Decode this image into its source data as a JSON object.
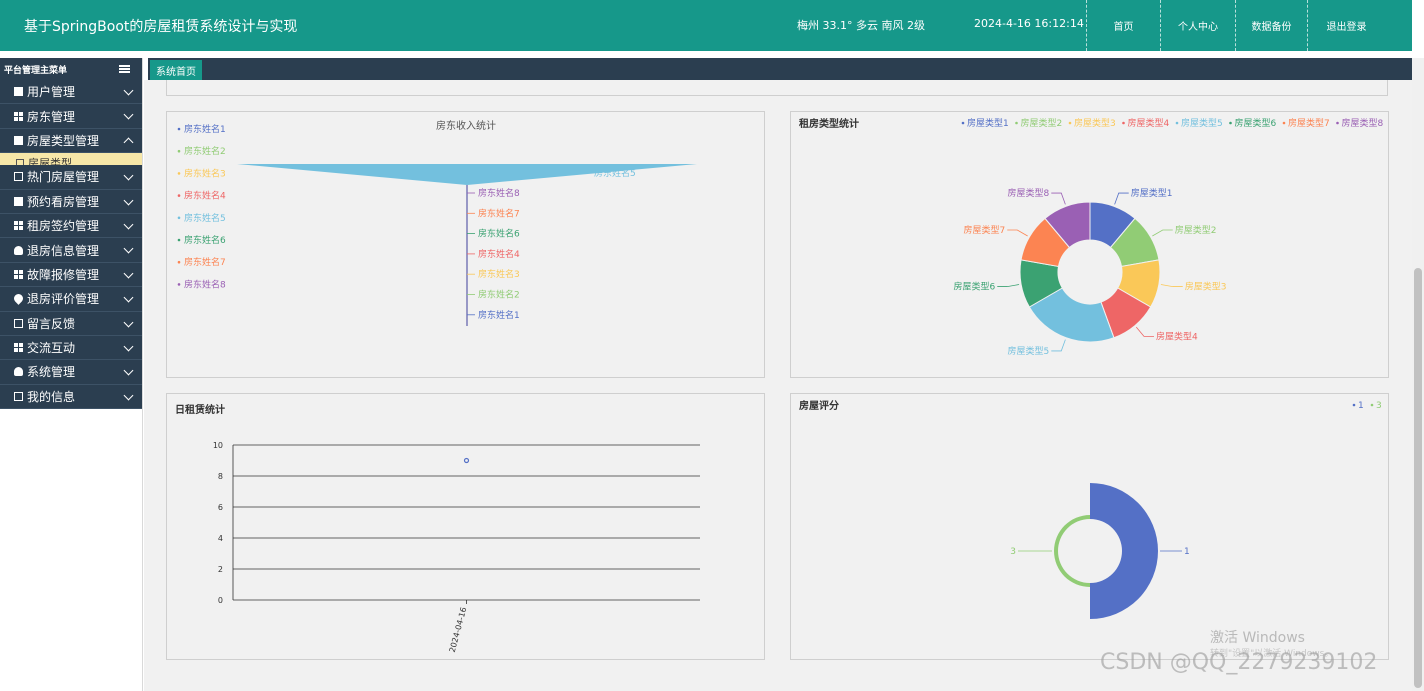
{
  "header": {
    "title": "基于SpringBoot的房屋租赁系统设计与实现",
    "weather": "梅州  33.1°  多云  南风  2级",
    "datetime": "2024-4-16 16:12:14",
    "nav": [
      "首页",
      "个人中心",
      "数据备份",
      "退出登录"
    ]
  },
  "sidebar": {
    "header": "平台管理主菜单",
    "items": [
      {
        "label": "用户管理",
        "icon": "chat-icon"
      },
      {
        "label": "房东管理",
        "icon": "grid-icon"
      },
      {
        "label": "房屋类型管理",
        "icon": "chat-icon",
        "expanded": true
      },
      {
        "label": "热门房屋管理",
        "icon": "chart-icon"
      },
      {
        "label": "预约看房管理",
        "icon": "clipboard-icon"
      },
      {
        "label": "租房签约管理",
        "icon": "grid-icon"
      },
      {
        "label": "退房信息管理",
        "icon": "user-icon"
      },
      {
        "label": "故障报修管理",
        "icon": "grid-icon"
      },
      {
        "label": "退房评价管理",
        "icon": "pin-icon"
      },
      {
        "label": "留言反馈",
        "icon": "form-icon"
      },
      {
        "label": "交流互动",
        "icon": "grid-icon"
      },
      {
        "label": "系统管理",
        "icon": "user-icon"
      },
      {
        "label": "我的信息",
        "icon": "card-icon"
      }
    ],
    "subitem": "房屋类型"
  },
  "tabs": [
    "系统首页"
  ],
  "watermark": {
    "line1": "激活 Windows",
    "line2": "转到\"设置\"以激活 Windows。",
    "csdn": "CSDN @QQ_2279239102"
  },
  "colors": {
    "header": "#16988a",
    "sidebar": "#2b3e50",
    "palette": [
      "#5470c6",
      "#91cc75",
      "#fac858",
      "#ee6666",
      "#73c0de",
      "#3ba272",
      "#fc8452",
      "#9a60b4"
    ]
  },
  "chart_data": [
    {
      "type": "funnel",
      "title": "房东收入统计",
      "legend": [
        "房东姓名1",
        "房东姓名2",
        "房东姓名3",
        "房东姓名4",
        "房东姓名5",
        "房东姓名6",
        "房东姓名7",
        "房东姓名8"
      ],
      "legend_placement": "left",
      "labels_order": [
        "房东姓名5",
        "房东姓名8",
        "房东姓名7",
        "房东姓名6",
        "房东姓名4",
        "房东姓名3",
        "房东姓名2",
        "房东姓名1"
      ]
    },
    {
      "type": "pie",
      "title": "租房类型统计",
      "legend_placement": "top-right",
      "donut": true,
      "categories": [
        "房屋类型1",
        "房屋类型2",
        "房屋类型3",
        "房屋类型4",
        "房屋类型5",
        "房屋类型6",
        "房屋类型7",
        "房屋类型8"
      ],
      "values": [
        1,
        1,
        1,
        1,
        2,
        1,
        1,
        1
      ]
    },
    {
      "type": "scatter",
      "title": "日租赁统计",
      "x": [
        "2024-04-16"
      ],
      "values": [
        9
      ],
      "ylim": [
        0,
        10
      ],
      "yticks": [
        0,
        2,
        4,
        6,
        8,
        10
      ],
      "grid": true
    },
    {
      "type": "pie",
      "title": "房屋评分",
      "legend_placement": "top-right",
      "categories": [
        "1",
        "3"
      ],
      "values": [
        1,
        1
      ],
      "roseType": true
    }
  ]
}
